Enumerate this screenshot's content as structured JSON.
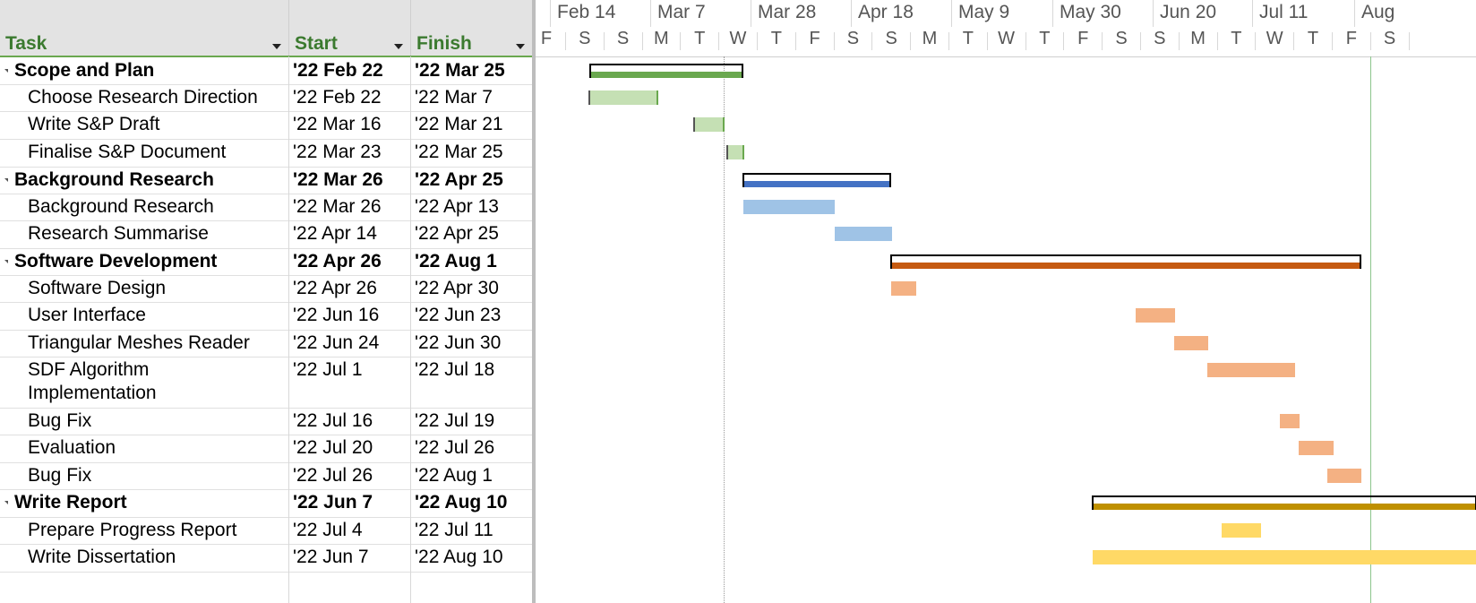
{
  "columns": {
    "task": "Task",
    "start": "Start",
    "finish": "Finish"
  },
  "rows": [
    {
      "name": "Scope and Plan",
      "start": "'22 Feb 22",
      "finish": "'22 Mar 25",
      "summary": true
    },
    {
      "name": "Choose Research Direction",
      "start": "'22 Feb 22",
      "finish": "'22 Mar 7",
      "summary": false
    },
    {
      "name": "Write S&P Draft",
      "start": "'22 Mar 16",
      "finish": "'22 Mar 21",
      "summary": false
    },
    {
      "name": "Finalise S&P Document",
      "start": "'22 Mar 23",
      "finish": "'22 Mar 25",
      "summary": false
    },
    {
      "name": "Background Research",
      "start": "'22 Mar 26",
      "finish": "'22 Apr 25",
      "summary": true
    },
    {
      "name": "Background Research",
      "start": "'22 Mar 26",
      "finish": "'22 Apr 13",
      "summary": false
    },
    {
      "name": "Research Summarise",
      "start": "'22 Apr 14",
      "finish": "'22 Apr 25",
      "summary": false
    },
    {
      "name": "Software Development",
      "start": "'22 Apr 26",
      "finish": "'22 Aug 1",
      "summary": true
    },
    {
      "name": "Software Design",
      "start": "'22 Apr 26",
      "finish": "'22 Apr 30",
      "summary": false
    },
    {
      "name": "User Interface",
      "start": "'22 Jun 16",
      "finish": "'22 Jun 23",
      "summary": false
    },
    {
      "name": "Triangular Meshes Reader",
      "start": "'22 Jun 24",
      "finish": "'22 Jun 30",
      "summary": false
    },
    {
      "name": "SDF Algorithm",
      "name2": "Implementation",
      "start": "'22 Jul 1",
      "finish": "'22 Jul 18",
      "summary": false
    },
    {
      "name": "Bug Fix",
      "start": "'22 Jul 16",
      "finish": "'22 Jul 19",
      "summary": false
    },
    {
      "name": "Evaluation",
      "start": "'22 Jul 20",
      "finish": "'22 Jul 26",
      "summary": false
    },
    {
      "name": "Bug Fix",
      "start": "'22 Jul 26",
      "finish": "'22 Aug 1",
      "summary": false
    },
    {
      "name": "Write Report",
      "start": "'22 Jun 7",
      "finish": "'22 Aug 10",
      "summary": true
    },
    {
      "name": "Prepare Progress Report",
      "start": "'22 Jul 4",
      "finish": "'22 Jul 11",
      "summary": false
    },
    {
      "name": "Write Dissertation",
      "start": "'22 Jun 7",
      "finish": "'22 Aug 10",
      "summary": false
    }
  ],
  "timescale": {
    "major": [
      "Feb 14",
      "Mar 7",
      "Mar 28",
      "Apr 18",
      "May 9",
      "May 30",
      "Jun 20",
      "Jul 11",
      "Aug"
    ],
    "minor": [
      "F",
      "S",
      "S",
      "M",
      "T",
      "W",
      "T",
      "F",
      "S",
      "S",
      "M",
      "T",
      "W",
      "T",
      "F",
      "S",
      "S",
      "M",
      "T",
      "W",
      "T",
      "F",
      "S"
    ]
  },
  "colors": {
    "scope_summary": "#6aa84f",
    "scope_task": "#c5e0b4",
    "research_summary": "#4472c4",
    "research_task": "#9fc3e6",
    "software_summary": "#c55a11",
    "software_task": "#f4b183",
    "report_summary": "#bf9000",
    "report_task": "#ffd966"
  }
}
